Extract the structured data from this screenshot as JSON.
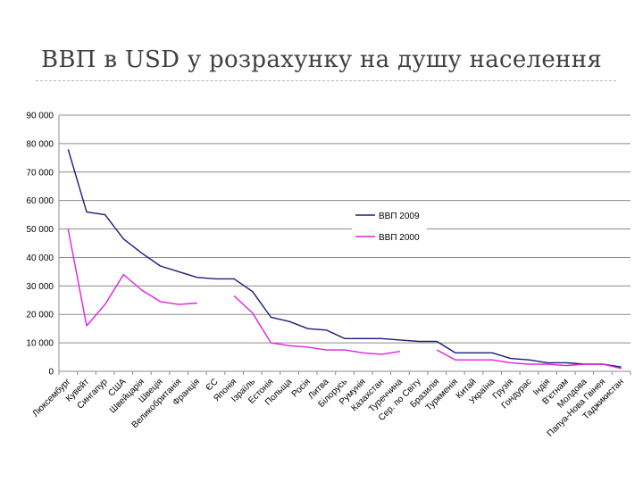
{
  "slide": {
    "title": "ВВП в USD у розрахунку на душу населення"
  },
  "chart_data": {
    "type": "line",
    "title": "",
    "xlabel": "",
    "ylabel": "",
    "ylim": [
      0,
      90000
    ],
    "yticks": [
      0,
      10000,
      20000,
      30000,
      40000,
      50000,
      60000,
      70000,
      80000,
      90000
    ],
    "ytick_labels": [
      "0",
      "10 000",
      "20 000",
      "30 000",
      "40 000",
      "50 000",
      "60 000",
      "70 000",
      "80 000",
      "90 000"
    ],
    "grid": true,
    "legend_position": "center-right",
    "categories": [
      "Люксембург",
      "Кувейт",
      "Сингапур",
      "США",
      "Швейцарія",
      "Швеція",
      "Великобританія",
      "Франція",
      "ЄС",
      "Японія",
      "Ізраїль",
      "Естонія",
      "Польща",
      "Росія",
      "Литва",
      "Білорусь",
      "Румунія",
      "Казахстан",
      "Туреччина",
      "Сер. по Світу",
      "Бразилія",
      "Туркменія",
      "Китай",
      "Україна",
      "Грузія",
      "Гондурас",
      "Індія",
      "В'єтнам",
      "Молдова",
      "Папуа-Нова Гвінея",
      "Таджикистан"
    ],
    "series": [
      {
        "name": "ВВП 2009",
        "color": "#1f1a7a",
        "values": [
          78000,
          56000,
          55000,
          46500,
          41500,
          37000,
          35000,
          33000,
          32500,
          32500,
          28000,
          19000,
          17500,
          15000,
          14500,
          11500,
          11500,
          11500,
          11000,
          10500,
          10500,
          6500,
          6500,
          6500,
          4500,
          4000,
          3000,
          3000,
          2500,
          2500,
          1500
        ]
      },
      {
        "name": "ВВП 2000",
        "color": "#e020e0",
        "values": [
          50000,
          16000,
          23500,
          34000,
          28500,
          24500,
          23500,
          24000,
          null,
          26500,
          20500,
          10000,
          9000,
          8500,
          7500,
          7500,
          6500,
          6000,
          7000,
          null,
          7500,
          4000,
          4000,
          4000,
          3000,
          2500,
          2500,
          2000,
          2500,
          2500,
          1000
        ]
      }
    ]
  }
}
